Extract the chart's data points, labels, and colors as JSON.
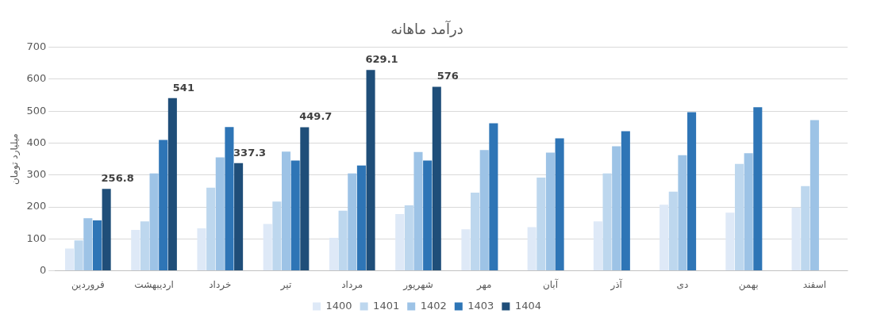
{
  "chart_data": {
    "type": "bar",
    "title": "درآمد ماهانه",
    "ylabel": "میلیارد تومان",
    "categories": [
      "فروردین",
      "اردیبهشت",
      "خرداد",
      "تیر",
      "مرداد",
      "شهریور",
      "مهر",
      "آبان",
      "آذر",
      "دی",
      "بهمن",
      "اسفند"
    ],
    "series": [
      {
        "name": "1400",
        "color": "#dee9f7",
        "values": [
          70,
          128,
          133,
          147,
          103,
          178,
          130,
          137,
          155,
          207,
          182,
          198
        ]
      },
      {
        "name": "1401",
        "color": "#bdd7ee",
        "values": [
          95,
          155,
          260,
          217,
          188,
          205,
          245,
          292,
          305,
          248,
          335,
          265
        ]
      },
      {
        "name": "1402",
        "color": "#9dc3e6",
        "values": [
          165,
          305,
          355,
          373,
          305,
          372,
          378,
          370,
          390,
          362,
          368,
          472
        ]
      },
      {
        "name": "1403",
        "color": "#2e75b6",
        "values": [
          158,
          410,
          450,
          345,
          330,
          345,
          462,
          415,
          437,
          497,
          512,
          null
        ]
      },
      {
        "name": "1404",
        "color": "#1f4e79",
        "values": [
          256.8,
          541,
          337.3,
          449.7,
          629.1,
          576,
          null,
          null,
          null,
          null,
          null,
          null
        ],
        "value_labels": [
          "256.8",
          "541",
          "337.3",
          "449.7",
          "629.1",
          "576",
          null,
          null,
          null,
          null,
          null,
          null
        ]
      }
    ],
    "ylim": [
      0,
      700
    ],
    "yticks": [
      0,
      100,
      200,
      300,
      400,
      500,
      600,
      700
    ],
    "grid": "y",
    "legend": "bottom"
  }
}
